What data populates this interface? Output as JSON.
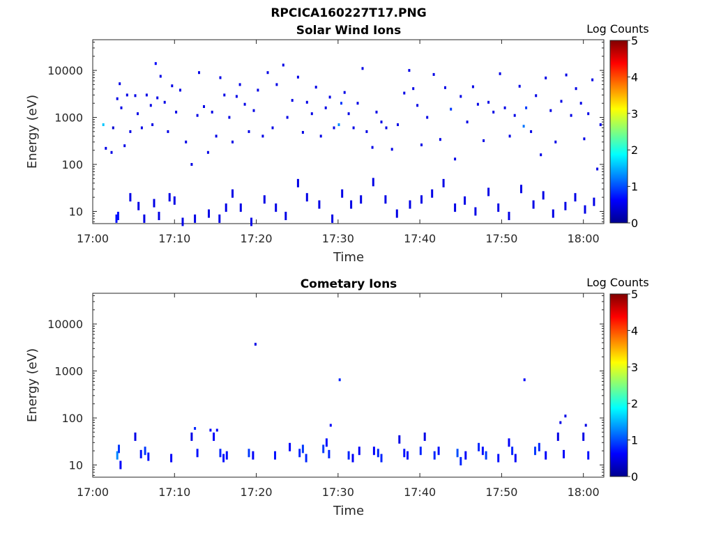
{
  "figure_title": "RPCICA160227T17.PNG",
  "chart_data": [
    {
      "type": "heatmap",
      "title": "Solar Wind Ions",
      "xlabel": "Time",
      "ylabel": "Energy (eV)",
      "x_ticks": [
        "17:00",
        "17:10",
        "17:20",
        "17:30",
        "17:40",
        "17:50",
        "18:00"
      ],
      "x_range_minutes": [
        0,
        62.5
      ],
      "y_scale": "log",
      "y_ticks": [
        10,
        100,
        1000,
        10000
      ],
      "y_tick_labels": [
        "10",
        "100",
        "1000",
        "10000"
      ],
      "y_range": [
        5.5,
        45000
      ],
      "colorbar_label": "Log Counts",
      "colorbar_ticks": [
        "0",
        "1",
        "2",
        "3",
        "4",
        "5"
      ],
      "colorbar_range": [
        0,
        5
      ],
      "grid": false,
      "points": [
        [
          1.3,
          700,
          1.6
        ],
        [
          1.6,
          220,
          0.5
        ],
        [
          2.3,
          180,
          0.5
        ],
        [
          2.5,
          600,
          0.4
        ],
        [
          3.0,
          2500,
          0.5
        ],
        [
          3.3,
          5200,
          0.5
        ],
        [
          3.5,
          1600,
          0.5
        ],
        [
          3.9,
          250,
          0.5
        ],
        [
          4.2,
          3000,
          0.5
        ],
        [
          4.6,
          500,
          0.5
        ],
        [
          5.2,
          2900,
          0.5
        ],
        [
          5.5,
          1200,
          0.5
        ],
        [
          6.0,
          600,
          0.5
        ],
        [
          6.6,
          3000,
          0.5
        ],
        [
          7.1,
          1800,
          0.5
        ],
        [
          7.3,
          700,
          0.5
        ],
        [
          7.7,
          14000,
          0.6
        ],
        [
          7.9,
          2600,
          0.5
        ],
        [
          8.3,
          7500,
          0.5
        ],
        [
          8.8,
          2100,
          0.5
        ],
        [
          9.2,
          500,
          0.5
        ],
        [
          9.7,
          4700,
          0.5
        ],
        [
          10.2,
          1300,
          0.5
        ],
        [
          10.7,
          3800,
          0.5
        ],
        [
          11.4,
          300,
          0.5
        ],
        [
          12.1,
          100,
          0.5
        ],
        [
          12.8,
          1100,
          0.5
        ],
        [
          13.0,
          9000,
          0.5
        ],
        [
          13.6,
          1700,
          0.5
        ],
        [
          14.1,
          180,
          0.5
        ],
        [
          14.6,
          1300,
          0.5
        ],
        [
          15.1,
          400,
          0.5
        ],
        [
          15.6,
          7000,
          0.5
        ],
        [
          16.1,
          3000,
          0.5
        ],
        [
          16.7,
          1000,
          0.5
        ],
        [
          17.1,
          300,
          0.5
        ],
        [
          17.6,
          2800,
          0.5
        ],
        [
          18.0,
          5000,
          0.5
        ],
        [
          18.6,
          1900,
          0.5
        ],
        [
          19.1,
          500,
          0.5
        ],
        [
          19.7,
          1400,
          0.5
        ],
        [
          20.2,
          3800,
          0.5
        ],
        [
          20.8,
          400,
          0.5
        ],
        [
          21.4,
          9000,
          0.5
        ],
        [
          22.0,
          600,
          0.5
        ],
        [
          22.5,
          5000,
          0.5
        ],
        [
          23.3,
          13000,
          0.5
        ],
        [
          23.8,
          1000,
          0.5
        ],
        [
          24.4,
          2300,
          0.5
        ],
        [
          25.1,
          7200,
          0.5
        ],
        [
          25.7,
          480,
          0.5
        ],
        [
          26.2,
          2100,
          0.5
        ],
        [
          26.8,
          1200,
          0.5
        ],
        [
          27.3,
          4400,
          0.5
        ],
        [
          27.9,
          400,
          0.5
        ],
        [
          28.5,
          1600,
          0.5
        ],
        [
          29.0,
          2700,
          0.5
        ],
        [
          29.5,
          600,
          0.5
        ],
        [
          30.1,
          700,
          1.3
        ],
        [
          30.4,
          2000,
          0.9
        ],
        [
          30.8,
          3400,
          0.5
        ],
        [
          31.3,
          1200,
          0.5
        ],
        [
          31.9,
          600,
          0.5
        ],
        [
          32.4,
          2000,
          0.5
        ],
        [
          33.0,
          11000,
          0.5
        ],
        [
          33.5,
          500,
          0.5
        ],
        [
          34.2,
          230,
          0.5
        ],
        [
          34.7,
          1300,
          0.5
        ],
        [
          35.3,
          800,
          0.5
        ],
        [
          35.9,
          600,
          0.5
        ],
        [
          36.6,
          210,
          0.5
        ],
        [
          37.3,
          700,
          0.5
        ],
        [
          38.1,
          3300,
          0.5
        ],
        [
          38.7,
          10000,
          0.5
        ],
        [
          39.2,
          4100,
          0.5
        ],
        [
          39.7,
          1800,
          0.5
        ],
        [
          40.2,
          260,
          0.5
        ],
        [
          40.9,
          1000,
          0.5
        ],
        [
          41.7,
          8200,
          0.5
        ],
        [
          42.5,
          340,
          0.5
        ],
        [
          43.1,
          4300,
          0.5
        ],
        [
          43.8,
          1500,
          0.9
        ],
        [
          44.3,
          130,
          0.5
        ],
        [
          45.0,
          2800,
          0.5
        ],
        [
          45.8,
          800,
          0.5
        ],
        [
          46.5,
          4500,
          0.5
        ],
        [
          47.1,
          1900,
          0.5
        ],
        [
          47.8,
          320,
          0.5
        ],
        [
          48.4,
          2100,
          0.5
        ],
        [
          49.0,
          1300,
          0.5
        ],
        [
          49.8,
          8500,
          0.5
        ],
        [
          50.4,
          1600,
          0.5
        ],
        [
          51.0,
          400,
          0.5
        ],
        [
          51.6,
          1100,
          0.5
        ],
        [
          52.2,
          4600,
          0.5
        ],
        [
          52.7,
          650,
          1.2
        ],
        [
          53.0,
          1600,
          0.9
        ],
        [
          53.6,
          500,
          0.5
        ],
        [
          54.2,
          2900,
          0.5
        ],
        [
          54.8,
          160,
          0.5
        ],
        [
          55.4,
          6900,
          0.5
        ],
        [
          56.0,
          1400,
          0.5
        ],
        [
          56.6,
          300,
          0.5
        ],
        [
          57.3,
          2200,
          0.5
        ],
        [
          57.9,
          8000,
          0.5
        ],
        [
          58.5,
          1100,
          0.5
        ],
        [
          59.1,
          4100,
          0.5
        ],
        [
          59.7,
          2000,
          0.5
        ],
        [
          60.1,
          350,
          0.5
        ],
        [
          60.6,
          1200,
          0.5
        ],
        [
          61.1,
          6300,
          0.5
        ],
        [
          61.7,
          80,
          0.5
        ],
        [
          62.1,
          700,
          0.5
        ],
        [
          2.9,
          7,
          0.7
        ],
        [
          3.1,
          8,
          0.7
        ],
        [
          4.6,
          20,
          0.5
        ],
        [
          5.6,
          13,
          0.5
        ],
        [
          6.3,
          7,
          0.5
        ],
        [
          7.5,
          15,
          0.5
        ],
        [
          8.1,
          8,
          0.5
        ],
        [
          9.4,
          20,
          0.5
        ],
        [
          10.0,
          17,
          0.5
        ],
        [
          11.0,
          6,
          0.5
        ],
        [
          12.5,
          7,
          0.5
        ],
        [
          14.2,
          9,
          0.5
        ],
        [
          15.5,
          7,
          0.5
        ],
        [
          16.3,
          12,
          0.5
        ],
        [
          17.1,
          24,
          0.5
        ],
        [
          18.1,
          12,
          0.5
        ],
        [
          19.4,
          6,
          0.5
        ],
        [
          21.0,
          18,
          0.5
        ],
        [
          22.4,
          12,
          0.5
        ],
        [
          23.6,
          8,
          0.5
        ],
        [
          25.1,
          40,
          0.5
        ],
        [
          26.2,
          20,
          0.5
        ],
        [
          27.7,
          14,
          0.5
        ],
        [
          29.3,
          7,
          0.5
        ],
        [
          30.5,
          24,
          0.5
        ],
        [
          31.6,
          14,
          0.5
        ],
        [
          32.8,
          18,
          0.5
        ],
        [
          34.3,
          42,
          0.5
        ],
        [
          35.8,
          18,
          0.5
        ],
        [
          37.2,
          9,
          0.5
        ],
        [
          38.8,
          14,
          0.5
        ],
        [
          40.2,
          18,
          0.5
        ],
        [
          41.5,
          24,
          0.5
        ],
        [
          42.9,
          40,
          0.5
        ],
        [
          44.3,
          12,
          0.5
        ],
        [
          45.5,
          17,
          0.5
        ],
        [
          46.8,
          10,
          0.5
        ],
        [
          48.4,
          26,
          0.5
        ],
        [
          49.6,
          12,
          0.5
        ],
        [
          50.9,
          8,
          0.5
        ],
        [
          52.4,
          30,
          0.5
        ],
        [
          53.9,
          14,
          0.5
        ],
        [
          55.1,
          22,
          0.5
        ],
        [
          56.3,
          9,
          0.5
        ],
        [
          57.8,
          13,
          0.5
        ],
        [
          59.0,
          20,
          0.5
        ],
        [
          60.2,
          11,
          0.5
        ],
        [
          61.3,
          16,
          0.5
        ]
      ]
    },
    {
      "type": "heatmap",
      "title": "Cometary Ions",
      "xlabel": "Time",
      "ylabel": "Energy (eV)",
      "x_ticks": [
        "17:00",
        "17:10",
        "17:20",
        "17:30",
        "17:40",
        "17:50",
        "18:00"
      ],
      "x_range_minutes": [
        0,
        62.5
      ],
      "y_scale": "log",
      "y_ticks": [
        10,
        100,
        1000,
        10000
      ],
      "y_tick_labels": [
        "10",
        "100",
        "1000",
        "10000"
      ],
      "y_range": [
        5.5,
        45000
      ],
      "colorbar_label": "Log Counts",
      "colorbar_ticks": [
        "0",
        "1",
        "2",
        "3",
        "4",
        "5"
      ],
      "colorbar_range": [
        0,
        5
      ],
      "grid": false,
      "points": [
        [
          3.0,
          16,
          1.3
        ],
        [
          3.2,
          22,
          0.9
        ],
        [
          3.4,
          10,
          0.6
        ],
        [
          5.2,
          40,
          0.5
        ],
        [
          5.9,
          17,
          0.7
        ],
        [
          6.4,
          20,
          0.9
        ],
        [
          6.8,
          15,
          0.7
        ],
        [
          9.6,
          14,
          0.6
        ],
        [
          12.1,
          40,
          0.5
        ],
        [
          12.5,
          60,
          0.8
        ],
        [
          12.8,
          18,
          0.7
        ],
        [
          14.4,
          55,
          0.6
        ],
        [
          14.8,
          40,
          0.6
        ],
        [
          15.2,
          55,
          0.6
        ],
        [
          15.6,
          18,
          0.8
        ],
        [
          16.0,
          14,
          0.7
        ],
        [
          16.4,
          16,
          0.7
        ],
        [
          19.1,
          18,
          0.9
        ],
        [
          19.6,
          16,
          0.6
        ],
        [
          19.9,
          3700,
          0.5
        ],
        [
          22.3,
          16,
          0.7
        ],
        [
          24.1,
          24,
          0.6
        ],
        [
          25.3,
          18,
          0.8
        ],
        [
          25.7,
          22,
          0.9
        ],
        [
          26.1,
          14,
          0.8
        ],
        [
          28.2,
          22,
          0.9
        ],
        [
          28.6,
          30,
          0.7
        ],
        [
          28.9,
          17,
          0.8
        ],
        [
          29.1,
          70,
          0.6
        ],
        [
          30.2,
          650,
          0.8
        ],
        [
          31.3,
          16,
          0.8
        ],
        [
          31.8,
          14,
          0.6
        ],
        [
          32.6,
          20,
          0.6
        ],
        [
          34.4,
          20,
          0.6
        ],
        [
          34.9,
          18,
          0.8
        ],
        [
          35.3,
          14,
          0.8
        ],
        [
          37.5,
          35,
          0.5
        ],
        [
          38.1,
          18,
          0.7
        ],
        [
          38.5,
          16,
          0.7
        ],
        [
          40.1,
          20,
          0.8
        ],
        [
          40.6,
          40,
          0.5
        ],
        [
          41.8,
          16,
          0.8
        ],
        [
          42.3,
          20,
          0.7
        ],
        [
          44.6,
          18,
          1.0
        ],
        [
          45.0,
          12,
          0.8
        ],
        [
          45.6,
          16,
          0.6
        ],
        [
          47.2,
          24,
          0.8
        ],
        [
          47.7,
          20,
          0.7
        ],
        [
          48.1,
          16,
          0.9
        ],
        [
          49.6,
          14,
          0.7
        ],
        [
          50.9,
          30,
          0.6
        ],
        [
          51.3,
          20,
          0.8
        ],
        [
          51.7,
          14,
          0.6
        ],
        [
          52.8,
          650,
          0.6
        ],
        [
          54.1,
          20,
          0.9
        ],
        [
          54.6,
          24,
          0.8
        ],
        [
          55.4,
          16,
          0.6
        ],
        [
          56.9,
          40,
          0.5
        ],
        [
          57.2,
          80,
          0.5
        ],
        [
          57.6,
          17,
          0.6
        ],
        [
          57.8,
          110,
          0.5
        ],
        [
          60.0,
          40,
          0.5
        ],
        [
          60.3,
          70,
          0.5
        ],
        [
          60.6,
          16,
          0.7
        ]
      ]
    }
  ]
}
